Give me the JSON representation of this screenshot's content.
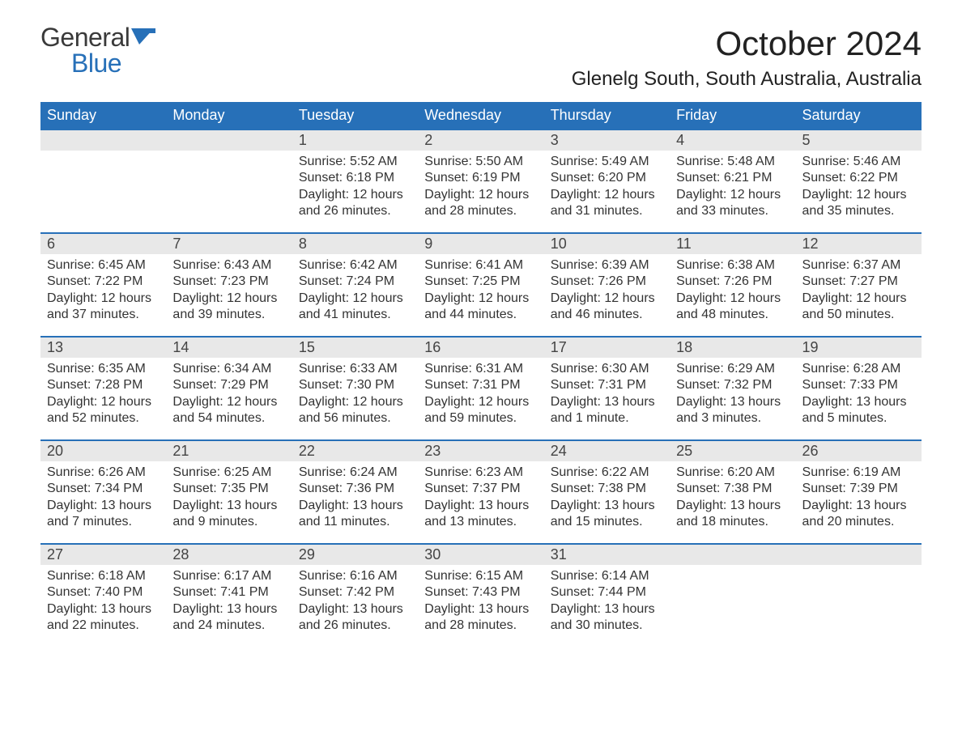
{
  "brand": {
    "line1": "General",
    "line2": "Blue",
    "icon_color": "#2770b8"
  },
  "title": "October 2024",
  "location": "Glenelg South, South Australia, Australia",
  "day_headers": [
    "Sunday",
    "Monday",
    "Tuesday",
    "Wednesday",
    "Thursday",
    "Friday",
    "Saturday"
  ],
  "colors": {
    "header_bg": "#2770b8",
    "header_fg": "#ffffff",
    "daynum_bg": "#e8e8e8",
    "row_border": "#2770b8",
    "body_text": "#333333",
    "background": "#ffffff"
  },
  "fonts": {
    "month_title_pt": 42,
    "location_pt": 24,
    "header_pt": 18,
    "daynum_pt": 18,
    "body_pt": 16,
    "logo_pt": 32
  },
  "weeks": [
    [
      {
        "n": "",
        "sunrise": "",
        "sunset": "",
        "daylight": ""
      },
      {
        "n": "",
        "sunrise": "",
        "sunset": "",
        "daylight": ""
      },
      {
        "n": "1",
        "sunrise": "Sunrise: 5:52 AM",
        "sunset": "Sunset: 6:18 PM",
        "daylight": "Daylight: 12 hours and 26 minutes."
      },
      {
        "n": "2",
        "sunrise": "Sunrise: 5:50 AM",
        "sunset": "Sunset: 6:19 PM",
        "daylight": "Daylight: 12 hours and 28 minutes."
      },
      {
        "n": "3",
        "sunrise": "Sunrise: 5:49 AM",
        "sunset": "Sunset: 6:20 PM",
        "daylight": "Daylight: 12 hours and 31 minutes."
      },
      {
        "n": "4",
        "sunrise": "Sunrise: 5:48 AM",
        "sunset": "Sunset: 6:21 PM",
        "daylight": "Daylight: 12 hours and 33 minutes."
      },
      {
        "n": "5",
        "sunrise": "Sunrise: 5:46 AM",
        "sunset": "Sunset: 6:22 PM",
        "daylight": "Daylight: 12 hours and 35 minutes."
      }
    ],
    [
      {
        "n": "6",
        "sunrise": "Sunrise: 6:45 AM",
        "sunset": "Sunset: 7:22 PM",
        "daylight": "Daylight: 12 hours and 37 minutes."
      },
      {
        "n": "7",
        "sunrise": "Sunrise: 6:43 AM",
        "sunset": "Sunset: 7:23 PM",
        "daylight": "Daylight: 12 hours and 39 minutes."
      },
      {
        "n": "8",
        "sunrise": "Sunrise: 6:42 AM",
        "sunset": "Sunset: 7:24 PM",
        "daylight": "Daylight: 12 hours and 41 minutes."
      },
      {
        "n": "9",
        "sunrise": "Sunrise: 6:41 AM",
        "sunset": "Sunset: 7:25 PM",
        "daylight": "Daylight: 12 hours and 44 minutes."
      },
      {
        "n": "10",
        "sunrise": "Sunrise: 6:39 AM",
        "sunset": "Sunset: 7:26 PM",
        "daylight": "Daylight: 12 hours and 46 minutes."
      },
      {
        "n": "11",
        "sunrise": "Sunrise: 6:38 AM",
        "sunset": "Sunset: 7:26 PM",
        "daylight": "Daylight: 12 hours and 48 minutes."
      },
      {
        "n": "12",
        "sunrise": "Sunrise: 6:37 AM",
        "sunset": "Sunset: 7:27 PM",
        "daylight": "Daylight: 12 hours and 50 minutes."
      }
    ],
    [
      {
        "n": "13",
        "sunrise": "Sunrise: 6:35 AM",
        "sunset": "Sunset: 7:28 PM",
        "daylight": "Daylight: 12 hours and 52 minutes."
      },
      {
        "n": "14",
        "sunrise": "Sunrise: 6:34 AM",
        "sunset": "Sunset: 7:29 PM",
        "daylight": "Daylight: 12 hours and 54 minutes."
      },
      {
        "n": "15",
        "sunrise": "Sunrise: 6:33 AM",
        "sunset": "Sunset: 7:30 PM",
        "daylight": "Daylight: 12 hours and 56 minutes."
      },
      {
        "n": "16",
        "sunrise": "Sunrise: 6:31 AM",
        "sunset": "Sunset: 7:31 PM",
        "daylight": "Daylight: 12 hours and 59 minutes."
      },
      {
        "n": "17",
        "sunrise": "Sunrise: 6:30 AM",
        "sunset": "Sunset: 7:31 PM",
        "daylight": "Daylight: 13 hours and 1 minute."
      },
      {
        "n": "18",
        "sunrise": "Sunrise: 6:29 AM",
        "sunset": "Sunset: 7:32 PM",
        "daylight": "Daylight: 13 hours and 3 minutes."
      },
      {
        "n": "19",
        "sunrise": "Sunrise: 6:28 AM",
        "sunset": "Sunset: 7:33 PM",
        "daylight": "Daylight: 13 hours and 5 minutes."
      }
    ],
    [
      {
        "n": "20",
        "sunrise": "Sunrise: 6:26 AM",
        "sunset": "Sunset: 7:34 PM",
        "daylight": "Daylight: 13 hours and 7 minutes."
      },
      {
        "n": "21",
        "sunrise": "Sunrise: 6:25 AM",
        "sunset": "Sunset: 7:35 PM",
        "daylight": "Daylight: 13 hours and 9 minutes."
      },
      {
        "n": "22",
        "sunrise": "Sunrise: 6:24 AM",
        "sunset": "Sunset: 7:36 PM",
        "daylight": "Daylight: 13 hours and 11 minutes."
      },
      {
        "n": "23",
        "sunrise": "Sunrise: 6:23 AM",
        "sunset": "Sunset: 7:37 PM",
        "daylight": "Daylight: 13 hours and 13 minutes."
      },
      {
        "n": "24",
        "sunrise": "Sunrise: 6:22 AM",
        "sunset": "Sunset: 7:38 PM",
        "daylight": "Daylight: 13 hours and 15 minutes."
      },
      {
        "n": "25",
        "sunrise": "Sunrise: 6:20 AM",
        "sunset": "Sunset: 7:38 PM",
        "daylight": "Daylight: 13 hours and 18 minutes."
      },
      {
        "n": "26",
        "sunrise": "Sunrise: 6:19 AM",
        "sunset": "Sunset: 7:39 PM",
        "daylight": "Daylight: 13 hours and 20 minutes."
      }
    ],
    [
      {
        "n": "27",
        "sunrise": "Sunrise: 6:18 AM",
        "sunset": "Sunset: 7:40 PM",
        "daylight": "Daylight: 13 hours and 22 minutes."
      },
      {
        "n": "28",
        "sunrise": "Sunrise: 6:17 AM",
        "sunset": "Sunset: 7:41 PM",
        "daylight": "Daylight: 13 hours and 24 minutes."
      },
      {
        "n": "29",
        "sunrise": "Sunrise: 6:16 AM",
        "sunset": "Sunset: 7:42 PM",
        "daylight": "Daylight: 13 hours and 26 minutes."
      },
      {
        "n": "30",
        "sunrise": "Sunrise: 6:15 AM",
        "sunset": "Sunset: 7:43 PM",
        "daylight": "Daylight: 13 hours and 28 minutes."
      },
      {
        "n": "31",
        "sunrise": "Sunrise: 6:14 AM",
        "sunset": "Sunset: 7:44 PM",
        "daylight": "Daylight: 13 hours and 30 minutes."
      },
      {
        "n": "",
        "sunrise": "",
        "sunset": "",
        "daylight": ""
      },
      {
        "n": "",
        "sunrise": "",
        "sunset": "",
        "daylight": ""
      }
    ]
  ]
}
